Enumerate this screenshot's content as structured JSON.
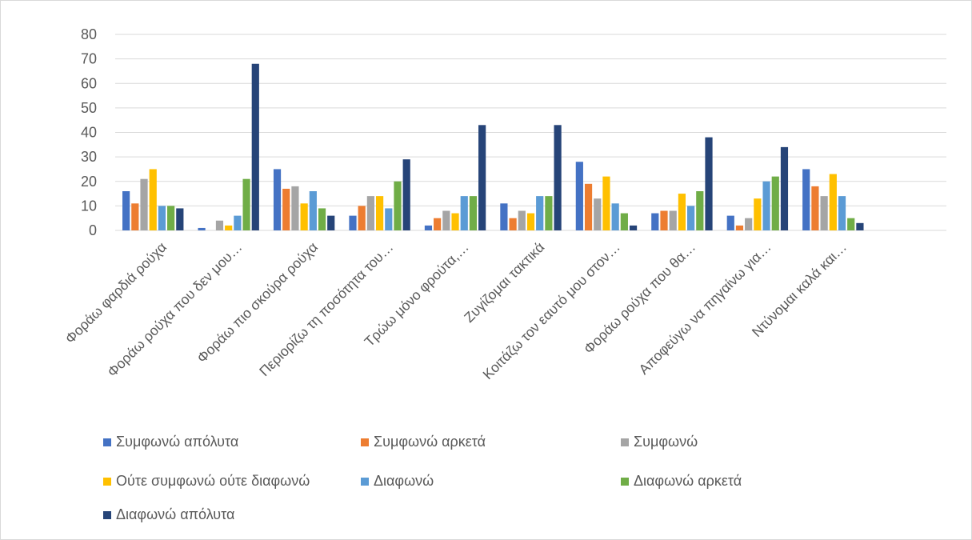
{
  "chart_data": {
    "type": "bar",
    "title": "",
    "xlabel": "",
    "ylabel": "",
    "ylim": [
      0,
      80
    ],
    "yticks": [
      0,
      10,
      20,
      30,
      40,
      50,
      60,
      70,
      80
    ],
    "grid": true,
    "legend_position": "bottom",
    "categories": [
      "Φοράω φαρδιά ρούχα",
      "Φοράω ρούχα που δεν μου…",
      "Φοράω πιο σκούρα ρούχα",
      "Περιορίζω τη ποσότητα του…",
      "Τρώω μόνο φρούτα,…",
      "Ζυγίζομαι τακτικά",
      "Κοιτάζω τον εαυτό μου στον…",
      "Φοράω ρούχα που θα…",
      "Αποφεύγω να πηγαίνω για…",
      "Ντύνομαι καλά και…"
    ],
    "series": [
      {
        "name": "Συμφωνώ απόλυτα",
        "color": "#4472C4",
        "values": [
          16,
          1,
          25,
          6,
          2,
          11,
          28,
          7,
          6,
          25
        ]
      },
      {
        "name": "Συμφωνώ αρκετά",
        "color": "#ED7D31",
        "values": [
          11,
          0,
          17,
          10,
          5,
          5,
          19,
          8,
          2,
          18
        ]
      },
      {
        "name": "Συμφωνώ",
        "color": "#A5A5A5",
        "values": [
          21,
          4,
          18,
          14,
          8,
          8,
          13,
          8,
          5,
          14
        ]
      },
      {
        "name": "Ούτε συμφωνώ ούτε διαφωνώ",
        "color": "#FFC000",
        "values": [
          25,
          2,
          11,
          14,
          7,
          7,
          22,
          15,
          13,
          23
        ]
      },
      {
        "name": "Διαφωνώ",
        "color": "#5B9BD5",
        "values": [
          10,
          6,
          16,
          9,
          14,
          14,
          11,
          10,
          20,
          14
        ]
      },
      {
        "name": "Διαφωνώ αρκετά",
        "color": "#70AD47",
        "values": [
          10,
          21,
          9,
          20,
          14,
          14,
          7,
          16,
          22,
          5
        ]
      },
      {
        "name": "Διαφωνώ απόλυτα",
        "color": "#264478",
        "values": [
          9,
          68,
          6,
          29,
          43,
          43,
          2,
          38,
          34,
          3
        ]
      }
    ]
  }
}
